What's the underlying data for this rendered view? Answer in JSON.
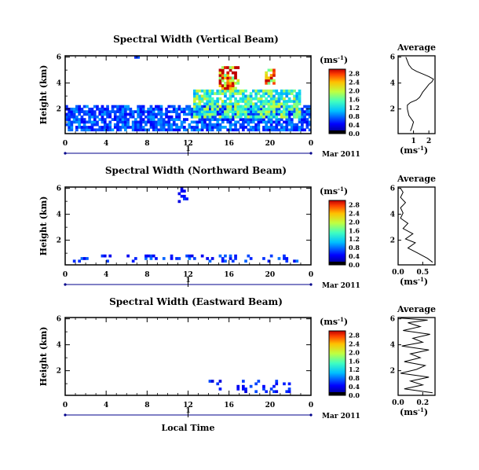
{
  "chart_data": [
    {
      "type": "heatmap",
      "title": "Spectral Width (Vertical Beam)",
      "xlabel": "",
      "ylabel": "Height (km)",
      "x_ticks": [
        "0",
        "4",
        "8",
        "12",
        "16",
        "20",
        "0"
      ],
      "y_ticks": [
        "2",
        "4",
        "6"
      ],
      "xlim": [
        0,
        24
      ],
      "ylim": [
        0.1,
        6.1
      ],
      "date_day": "1",
      "date_label": "Mar 2011",
      "cbar": {
        "unit": "(ms",
        "sup": "-1",
        "close": ")",
        "ticks": [
          "0.0",
          "0.4",
          "0.8",
          "1.2",
          "1.6",
          "2.0",
          "2.4",
          "2.8"
        ],
        "max": 3.0
      },
      "blobs": [
        {
          "x0": 0,
          "x1": 24,
          "y0": 0.3,
          "y1": 2.2,
          "v": 0.7
        },
        {
          "x0": 12.5,
          "x1": 23,
          "y0": 1.3,
          "y1": 3.5,
          "v": 1.5
        },
        {
          "x0": 15,
          "x1": 17,
          "y0": 3.5,
          "y1": 5.2,
          "v": 2.6
        },
        {
          "x0": 19.5,
          "x1": 20.5,
          "y0": 4,
          "y1": 5,
          "v": 2.4
        },
        {
          "x0": 6.8,
          "x1": 7.3,
          "y0": 5.8,
          "y1": 6.1,
          "v": 0.6
        }
      ],
      "profile": {
        "title": "Average",
        "xlabel": "(ms",
        "sup": "-1",
        "close": ")",
        "x_ticks": [
          "1",
          "2"
        ],
        "xlim": [
          0,
          2.4
        ],
        "ylim": [
          0.1,
          6.1
        ],
        "y_ticks": [
          "2",
          "4",
          "6"
        ],
        "x": [
          0.8,
          0.9,
          1.0,
          0.7,
          0.6,
          0.6,
          0.8,
          1.2,
          1.4,
          1.5,
          1.6,
          1.8,
          2.0,
          2.2,
          2.3,
          2.0,
          1.6,
          1.2,
          0.9,
          0.7,
          0.6,
          0.5
        ],
        "y": [
          0.3,
          0.6,
          1.0,
          1.5,
          2.0,
          2.3,
          2.5,
          2.7,
          2.9,
          3.1,
          3.3,
          3.6,
          3.9,
          4.1,
          4.3,
          4.5,
          4.7,
          4.9,
          5.1,
          5.4,
          5.7,
          6.0
        ]
      }
    },
    {
      "type": "heatmap",
      "title": "Spectral Width (Northward Beam)",
      "xlabel": "",
      "ylabel": "Height (km)",
      "x_ticks": [
        "0",
        "4",
        "8",
        "12",
        "16",
        "20",
        "0"
      ],
      "y_ticks": [
        "2",
        "4",
        "6"
      ],
      "xlim": [
        0,
        24
      ],
      "ylim": [
        0.1,
        6.1
      ],
      "date_day": "1",
      "date_label": "Mar 2011",
      "cbar": {
        "unit": "(ms",
        "sup": "-1",
        "close": ")",
        "ticks": [
          "0.0",
          "0.4",
          "0.8",
          "1.2",
          "1.6",
          "2.0",
          "2.4",
          "2.8"
        ],
        "max": 3.0
      },
      "blobs": [
        {
          "x0": 0.5,
          "x1": 23,
          "y0": 0.4,
          "y1": 0.9,
          "v": 0.6
        },
        {
          "x0": 11,
          "x1": 12,
          "y0": 5,
          "y1": 6,
          "v": 0.5
        }
      ],
      "profile": {
        "title": "Average",
        "xlabel": "(ms",
        "sup": "-1",
        "close": ")",
        "x_ticks": [
          "0.0",
          "0.5"
        ],
        "xlim": [
          0,
          0.75
        ],
        "ylim": [
          0.1,
          6.1
        ],
        "y_ticks": [
          "2",
          "4",
          "6"
        ],
        "x": [
          0.7,
          0.6,
          0.4,
          0.2,
          0.35,
          0.15,
          0.3,
          0.1,
          0.2,
          0.05,
          0.1,
          0.05,
          0.15,
          0.05,
          0.1,
          0.05
        ],
        "y": [
          0.3,
          0.6,
          1.0,
          1.4,
          1.8,
          2.1,
          2.5,
          2.9,
          3.3,
          3.7,
          4.1,
          4.5,
          4.9,
          5.3,
          5.7,
          6.0
        ]
      }
    },
    {
      "type": "heatmap",
      "title": "Spectral Width (Eastward Beam)",
      "xlabel": "Local Time",
      "ylabel": "Height (km)",
      "x_ticks": [
        "0",
        "4",
        "8",
        "12",
        "16",
        "20",
        "0"
      ],
      "y_ticks": [
        "2",
        "4",
        "6"
      ],
      "xlim": [
        0,
        24
      ],
      "ylim": [
        0.1,
        6.1
      ],
      "date_day": "1",
      "date_label": "Mar 2011",
      "cbar": {
        "unit": "(ms",
        "sup": "-1",
        "close": ")",
        "ticks": [
          "0.0",
          "0.4",
          "0.8",
          "1.2",
          "1.6",
          "2.0",
          "2.4",
          "2.8"
        ],
        "max": 3.0
      },
      "blobs": [
        {
          "x0": 14,
          "x1": 22,
          "y0": 0.3,
          "y1": 1.2,
          "v": 0.5
        }
      ],
      "profile": {
        "title": "Average",
        "xlabel": "(ms",
        "sup": "-1",
        "close": ")",
        "x_ticks": [
          "0.0",
          "0.2"
        ],
        "xlim": [
          0,
          0.3
        ],
        "ylim": [
          0.1,
          6.1
        ],
        "y_ticks": [
          "2",
          "4",
          "6"
        ],
        "x": [
          0.28,
          0.05,
          0.2,
          0.1,
          0.25,
          0.02,
          0.15,
          0.22,
          0.05,
          0.18,
          0.1,
          0.25,
          0.03,
          0.2,
          0.12,
          0.26,
          0.04,
          0.18,
          0.08,
          0.24,
          0.02
        ],
        "y": [
          0.3,
          0.6,
          0.9,
          1.2,
          1.5,
          1.8,
          2.1,
          2.4,
          2.7,
          3.0,
          3.3,
          3.6,
          3.9,
          4.2,
          4.5,
          4.8,
          5.1,
          5.4,
          5.7,
          5.9,
          6.05
        ]
      }
    }
  ]
}
